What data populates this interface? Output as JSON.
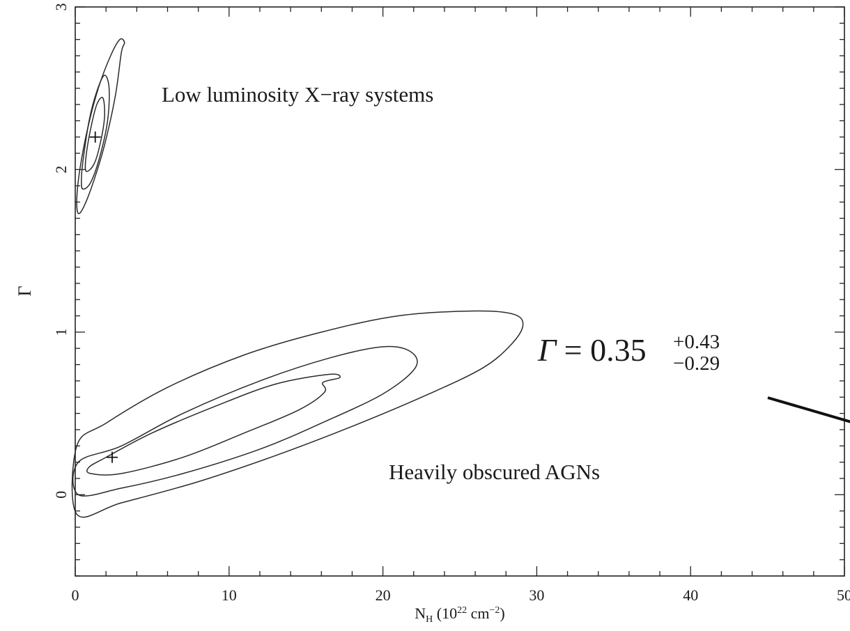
{
  "chart_data": {
    "type": "contour",
    "xlabel_main": "N",
    "xlabel_sub": "H",
    "xlabel_rest": " (10",
    "xlabel_exp1": "22",
    "xlabel_unit": " cm",
    "xlabel_exp2": "−2",
    "xlabel_close": ")",
    "ylabel": "Γ",
    "xlim": [
      0,
      50
    ],
    "ylim": [
      -0.5,
      3
    ],
    "x_ticks": [
      0,
      10,
      20,
      30,
      40,
      50
    ],
    "x_tick_labels": [
      "0",
      "10",
      "20",
      "30",
      "40",
      "50"
    ],
    "y_ticks": [
      0,
      1,
      2,
      3
    ],
    "y_tick_labels": [
      "0",
      "1",
      "2",
      "3"
    ],
    "grid": false,
    "annotations": [
      {
        "text": "Low luminosity X−ray systems",
        "x": 5.6,
        "y": 2.42
      },
      {
        "text": "Heavily obscured AGNs",
        "x": 20.3,
        "y": 0.25
      }
    ],
    "formula": {
      "symbol": "Γ",
      "equals": " = 0.35",
      "sup": "+0.43",
      "sub": "−0.29"
    },
    "best_fits": [
      {
        "x": 1.3,
        "y": 2.2
      },
      {
        "x": 2.4,
        "y": 0.23
      }
    ],
    "contours": [
      {
        "points": [
          [
            0.2,
            1.73
          ],
          [
            0.6,
            1.78
          ],
          [
            1.2,
            1.93
          ],
          [
            1.9,
            2.15
          ],
          [
            2.6,
            2.45
          ],
          [
            3.0,
            2.72
          ],
          [
            3.2,
            2.78
          ],
          [
            2.9,
            2.8
          ],
          [
            2.3,
            2.7
          ],
          [
            1.5,
            2.5
          ],
          [
            0.8,
            2.25
          ],
          [
            0.3,
            2.0
          ],
          [
            0.1,
            1.82
          ]
        ]
      },
      {
        "points": [
          [
            0.5,
            1.88
          ],
          [
            1.0,
            1.92
          ],
          [
            1.6,
            2.08
          ],
          [
            2.1,
            2.3
          ],
          [
            2.2,
            2.5
          ],
          [
            1.9,
            2.58
          ],
          [
            1.4,
            2.48
          ],
          [
            0.9,
            2.3
          ],
          [
            0.5,
            2.05
          ],
          [
            0.4,
            1.93
          ]
        ]
      },
      {
        "points": [
          [
            0.7,
            1.99
          ],
          [
            1.2,
            2.03
          ],
          [
            1.6,
            2.15
          ],
          [
            1.9,
            2.32
          ],
          [
            1.8,
            2.44
          ],
          [
            1.4,
            2.4
          ],
          [
            1.0,
            2.25
          ],
          [
            0.7,
            2.08
          ]
        ]
      },
      {
        "points": [
          [
            0.1,
            -0.12
          ],
          [
            3,
            -0.05
          ],
          [
            8,
            0.08
          ],
          [
            13,
            0.24
          ],
          [
            18,
            0.42
          ],
          [
            23,
            0.62
          ],
          [
            26.5,
            0.78
          ],
          [
            28.3,
            0.92
          ],
          [
            29.1,
            1.04
          ],
          [
            28.5,
            1.11
          ],
          [
            26,
            1.13
          ],
          [
            21,
            1.1
          ],
          [
            16,
            1.0
          ],
          [
            11,
            0.86
          ],
          [
            6,
            0.66
          ],
          [
            2,
            0.44
          ],
          [
            0.1,
            0.3
          ]
        ]
      },
      {
        "points": [
          [
            0.2,
            0.0
          ],
          [
            3,
            0.04
          ],
          [
            7,
            0.13
          ],
          [
            12,
            0.28
          ],
          [
            16,
            0.44
          ],
          [
            20,
            0.62
          ],
          [
            22.1,
            0.78
          ],
          [
            21.8,
            0.88
          ],
          [
            20,
            0.91
          ],
          [
            16.5,
            0.84
          ],
          [
            12,
            0.7
          ],
          [
            7,
            0.5
          ],
          [
            3,
            0.3
          ],
          [
            0.2,
            0.2
          ]
        ]
      },
      {
        "points": [
          [
            1.0,
            0.13
          ],
          [
            3,
            0.13
          ],
          [
            7,
            0.23
          ],
          [
            11,
            0.38
          ],
          [
            14.5,
            0.52
          ],
          [
            16.2,
            0.63
          ],
          [
            16.1,
            0.69
          ],
          [
            17.2,
            0.72
          ],
          [
            16.5,
            0.74
          ],
          [
            13,
            0.68
          ],
          [
            9,
            0.54
          ],
          [
            5,
            0.38
          ],
          [
            2,
            0.23
          ],
          [
            0.9,
            0.17
          ]
        ]
      }
    ]
  }
}
